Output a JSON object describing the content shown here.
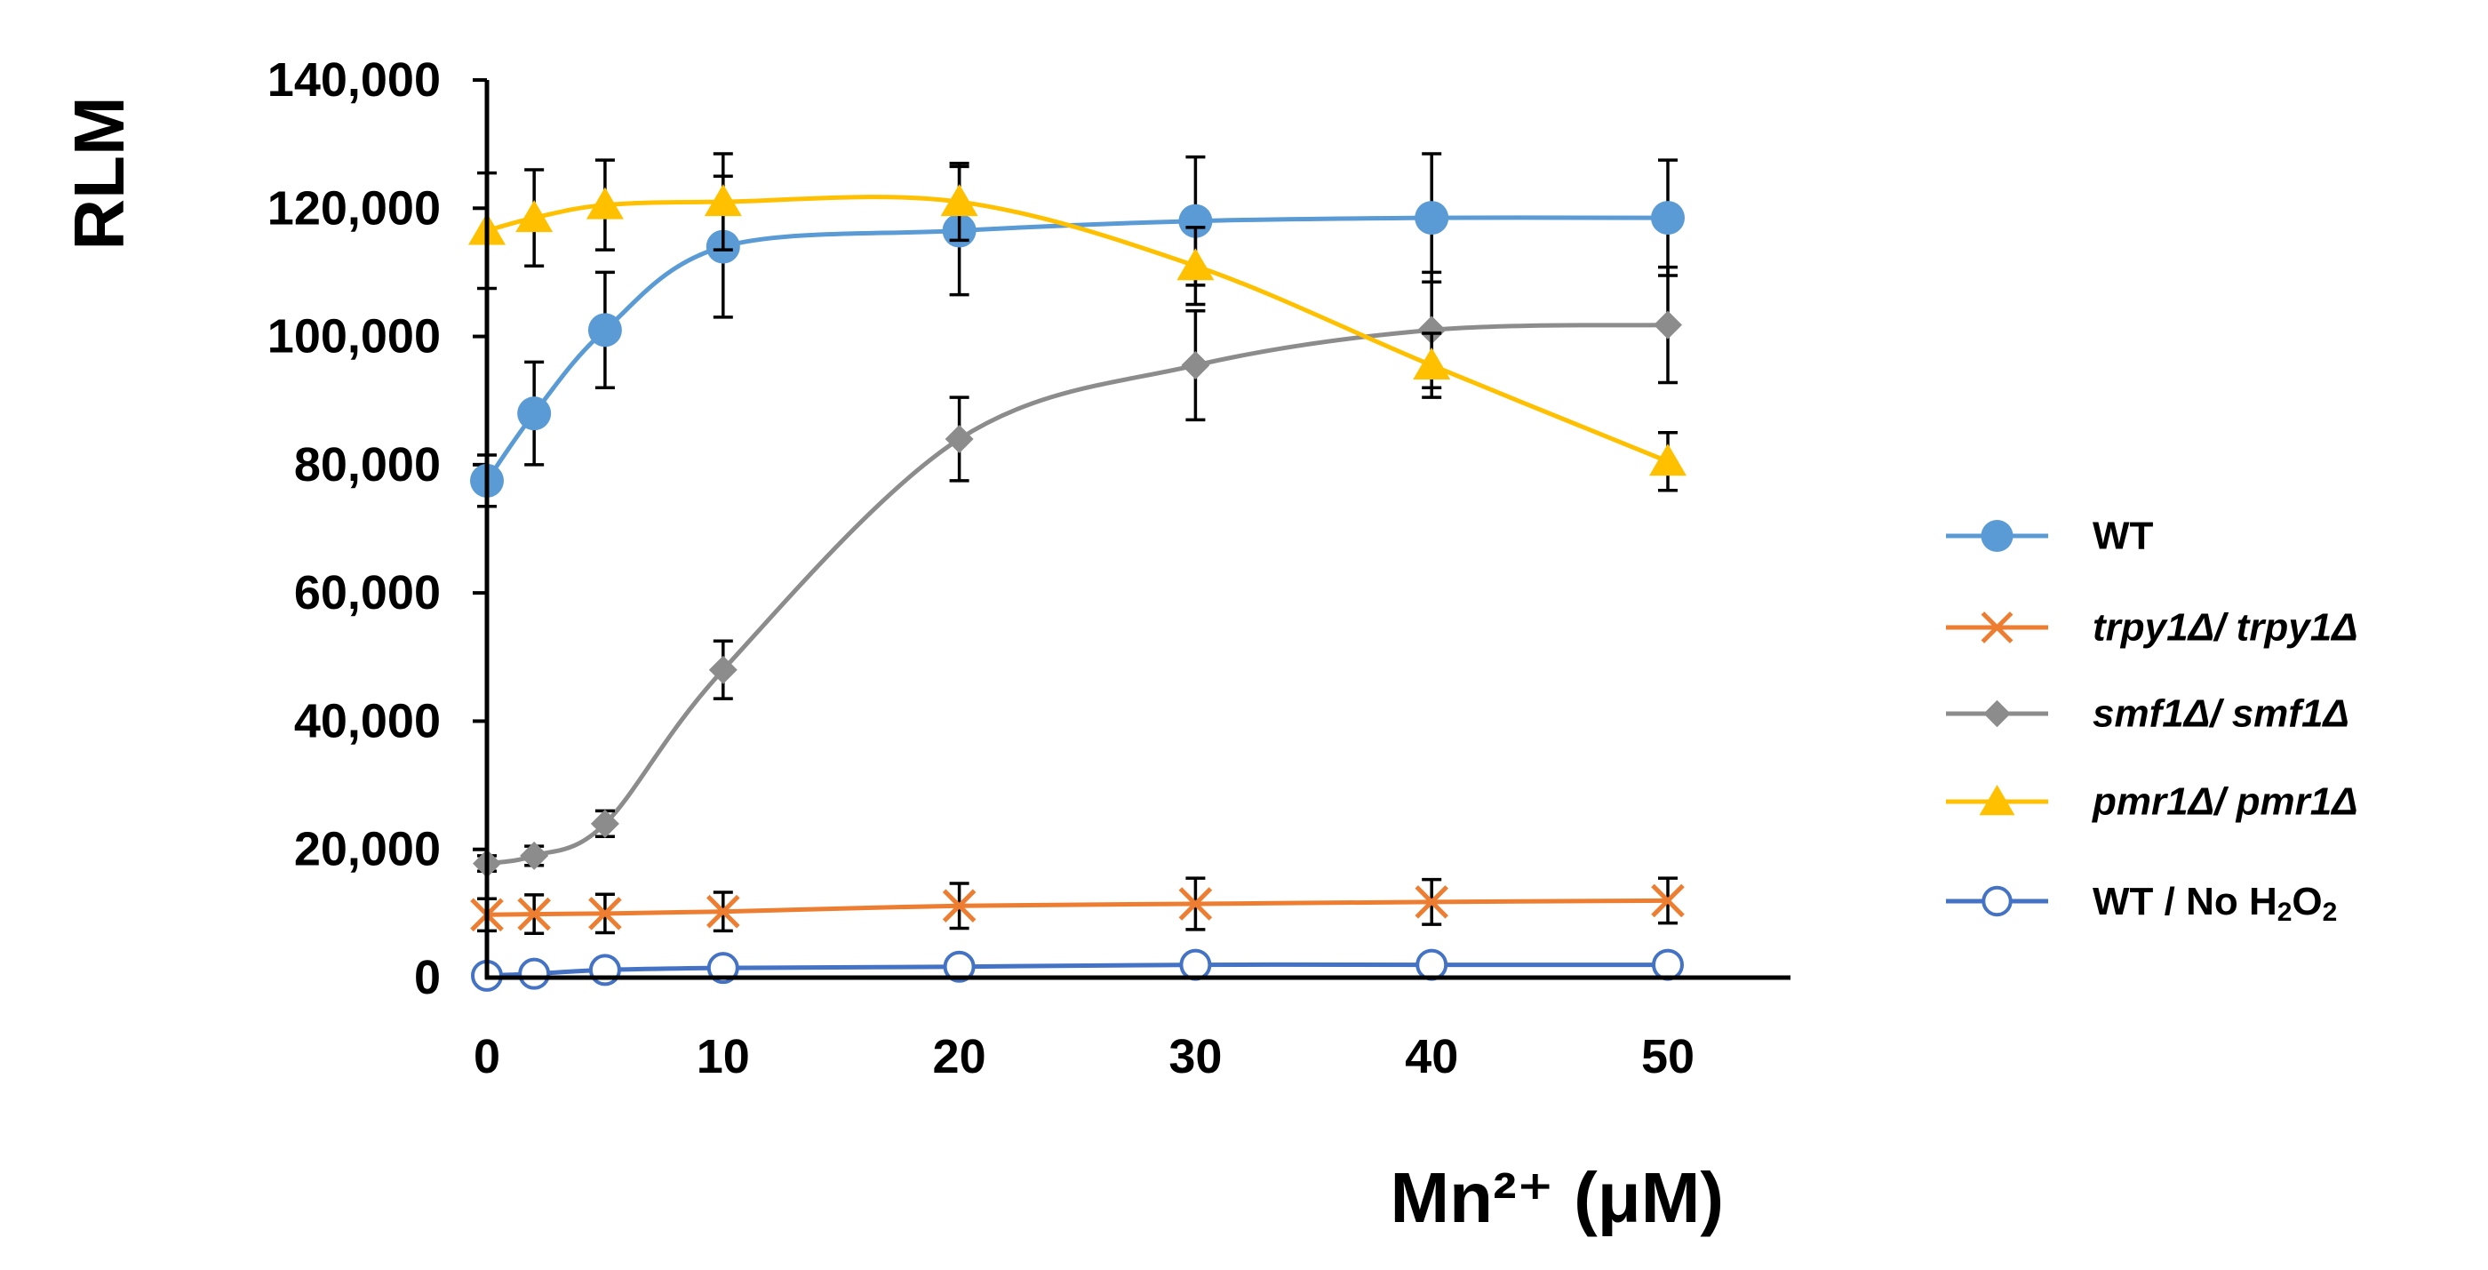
{
  "chart_data": {
    "type": "line",
    "title": "",
    "xlabel": "Mn²⁺ (μM)",
    "ylabel": "RLM",
    "x": [
      0,
      2,
      5,
      10,
      20,
      30,
      40,
      50
    ],
    "xlim": [
      0,
      55
    ],
    "ylim": [
      0,
      140000
    ],
    "x_ticks": [
      0,
      10,
      20,
      30,
      40,
      50
    ],
    "x_tick_labels": [
      "0",
      "10",
      "20",
      "30",
      "40",
      "50"
    ],
    "y_ticks": [
      0,
      20000,
      40000,
      60000,
      80000,
      100000,
      120000,
      140000
    ],
    "y_tick_labels": [
      "0",
      "20,000",
      "40,000",
      "60,000",
      "80,000",
      "100,000",
      "120,000",
      "140,000"
    ],
    "grid": false,
    "legend_position": "right",
    "series": [
      {
        "name": "WT",
        "label": "WT",
        "italic": false,
        "color": "#5B9BD5",
        "marker": "circle",
        "values": [
          77500,
          88000,
          101000,
          114000,
          116500,
          118000,
          118500,
          118500
        ],
        "errors": [
          4000,
          8000,
          9000,
          11000,
          10000,
          10000,
          10000,
          9000
        ]
      },
      {
        "name": "trpy1Δ/trpy1Δ",
        "label": "trpy1Δ/ trpy1Δ",
        "italic": true,
        "color": "#ED7D31",
        "marker": "x",
        "values": [
          9800,
          9900,
          10000,
          10300,
          11200,
          11500,
          11800,
          12000
        ],
        "errors": [
          2500,
          3000,
          3000,
          3000,
          3500,
          4000,
          3500,
          3500
        ]
      },
      {
        "name": "smf1Δ/smf1Δ",
        "label": "smf1Δ/ smf1Δ",
        "italic": true,
        "color": "#8C8C8C",
        "marker": "diamond",
        "values": [
          17800,
          19000,
          24000,
          48000,
          84000,
          95500,
          101000,
          101800
        ],
        "errors": [
          1200,
          1500,
          2000,
          4500,
          6500,
          8500,
          9000,
          9000
        ]
      },
      {
        "name": "pmr1Δ/pmr1Δ",
        "label": "pmr1Δ/ pmr1Δ",
        "italic": true,
        "color": "#FFC000",
        "marker": "triangle",
        "values": [
          116500,
          118500,
          120500,
          121000,
          121000,
          111000,
          95500,
          80500
        ],
        "errors": [
          9000,
          7500,
          7000,
          7500,
          6000,
          6000,
          5000,
          4500
        ]
      },
      {
        "name": "WT / No H2O2",
        "label_parts": [
          "WT / No H",
          "2",
          "O",
          "2"
        ],
        "italic": false,
        "color": "#4472C4",
        "marker": "open-circle",
        "values": [
          300,
          600,
          1200,
          1500,
          1700,
          2000,
          2000,
          2000
        ],
        "errors": [
          0,
          0,
          0,
          0,
          0,
          0,
          0,
          0
        ]
      }
    ]
  }
}
